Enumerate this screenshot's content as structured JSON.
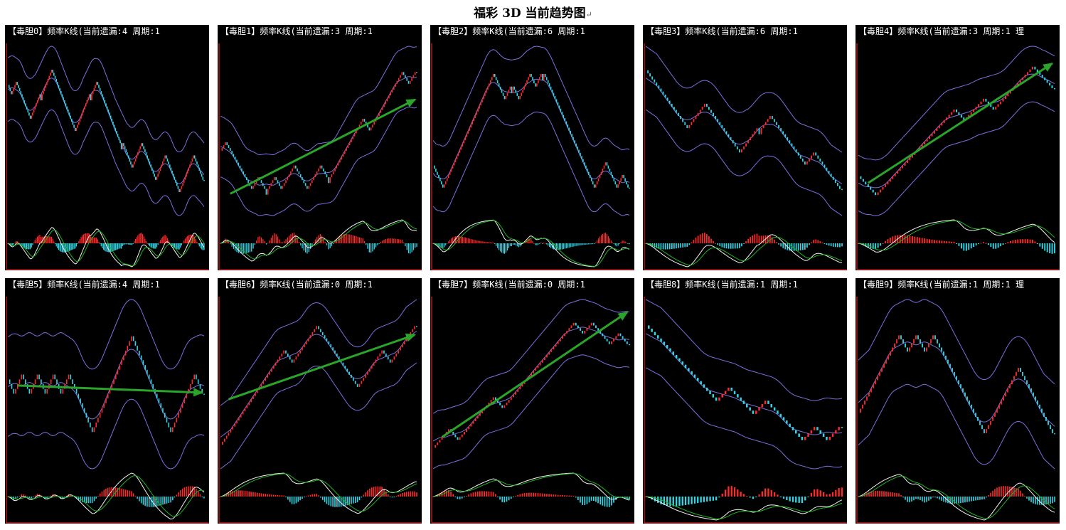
{
  "page": {
    "title": "福彩 3D 当前趋势图",
    "title_mark": "↵"
  },
  "colors": {
    "background": "#000000",
    "candle_up": "#ff2a2a",
    "candle_down": "#33d6e6",
    "bands": "#7b6fe0",
    "macd_line": "#f2f2f2",
    "signal_line": "#1fb31f",
    "trend_arrow": "#2aa52a",
    "axis": "#b01818"
  },
  "chart_data": [
    {
      "type": "candlestick",
      "title": "【毒胆0】频率K线(当前遗漏:4 周期:1",
      "levels": [
        9,
        8,
        9,
        7,
        6,
        8,
        8,
        9,
        10,
        8,
        7,
        6,
        5,
        6,
        7,
        8,
        8,
        9,
        7,
        6,
        4,
        4,
        3,
        2,
        3,
        4,
        3,
        2,
        1,
        2,
        3,
        2,
        1,
        0,
        1,
        2,
        3,
        2,
        1
      ],
      "trend_arrow": false
    },
    {
      "type": "candlestick",
      "title": "【毒胆1】频率K线(当前遗漏:3 周期:1",
      "levels": [
        3,
        4,
        3,
        2,
        1,
        0,
        1,
        0,
        0,
        1,
        0,
        1,
        2,
        1,
        0,
        1,
        2,
        1,
        1,
        2,
        3,
        4,
        5,
        6,
        5,
        6,
        7,
        8,
        9,
        10,
        9,
        10
      ],
      "trend_arrow": true
    },
    {
      "type": "candlestick",
      "title": "【毒胆2】频率K线(当前遗漏:6 周期:1",
      "levels": [
        2,
        1,
        0,
        2,
        4,
        6,
        7,
        8,
        9,
        8,
        7,
        8,
        8,
        7,
        8,
        9,
        8,
        9,
        9,
        8,
        7,
        6,
        5,
        4,
        3,
        2,
        1,
        0,
        1,
        2,
        1,
        0,
        1,
        0
      ],
      "trend_arrow": false
    },
    {
      "type": "candlestick",
      "title": "【毒胆3】频率K线(当前遗漏:6 周期:1",
      "levels": [
        9,
        8,
        7,
        6,
        5,
        4,
        5,
        6,
        5,
        4,
        3,
        2,
        3,
        4,
        4,
        5,
        4,
        3,
        2,
        1,
        2,
        1,
        0,
        -1
      ],
      "trend_arrow": false
    },
    {
      "type": "candlestick",
      "title": "【毒胆4】频率K线(当前遗漏:3 周期:1 理",
      "levels": [
        1,
        0,
        -1,
        0,
        1,
        2,
        3,
        4,
        5,
        6,
        7,
        6,
        7,
        8,
        7,
        8,
        9,
        10,
        11,
        10,
        9
      ],
      "trend_arrow": true
    },
    {
      "type": "candlestick",
      "title": "【毒胆5】频率K线(当前遗漏:4 周期:1",
      "levels": [
        4,
        3,
        4,
        3,
        4,
        3,
        4,
        3,
        4,
        3,
        2,
        1,
        3,
        5,
        6,
        5,
        4,
        3,
        2,
        1,
        2,
        3,
        4,
        3
      ],
      "trend_arrow": true
    },
    {
      "type": "candlestick",
      "title": "【毒胆6】频率K线(当前遗漏:0 周期:1",
      "levels": [
        0,
        1,
        2,
        3,
        4,
        5,
        6,
        7,
        8,
        7,
        8,
        9,
        10,
        9,
        8,
        7,
        6,
        5,
        6,
        7,
        8,
        7,
        8,
        9,
        10
      ],
      "trend_arrow": true
    },
    {
      "type": "candlestick",
      "title": "【毒胆7】频率K线(当前遗漏:0 周期:1",
      "levels": [
        0,
        1,
        2,
        1,
        2,
        3,
        4,
        5,
        4,
        5,
        6,
        7,
        8,
        9,
        10,
        11,
        12,
        11,
        12,
        11,
        10,
        11,
        10
      ],
      "trend_arrow": true
    },
    {
      "type": "candlestick",
      "title": "【毒胆8】频率K线(当前遗漏:1 周期:1",
      "levels": [
        9,
        8,
        7,
        6,
        5,
        4,
        3,
        4,
        3,
        2,
        3,
        2,
        1,
        0,
        1,
        0,
        1
      ],
      "trend_arrow": false
    },
    {
      "type": "candlestick",
      "title": "【毒胆9】频率K线(当前遗漏:1 周期:1 理",
      "levels": [
        2,
        3,
        4,
        5,
        6,
        7,
        6,
        7,
        6,
        7,
        6,
        5,
        4,
        3,
        2,
        1,
        2,
        3,
        4,
        5,
        4,
        3,
        2,
        1
      ],
      "trend_arrow": false
    }
  ]
}
